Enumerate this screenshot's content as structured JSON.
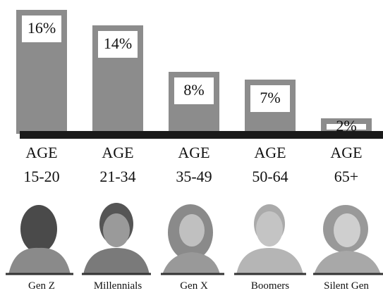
{
  "chart_data": {
    "type": "bar",
    "categories": [
      "AGE 15-20",
      "AGE 21-34",
      "AGE 35-49",
      "AGE 50-64",
      "AGE 65+"
    ],
    "values": [
      16,
      14,
      8,
      7,
      2
    ],
    "value_labels": [
      "16%",
      "14%",
      "8%",
      "7%",
      "2%"
    ],
    "generations": [
      "Gen Z",
      "Millennials",
      "Gen X",
      "Boomers",
      "Silent Gen"
    ],
    "color": "#8c8c8c",
    "ylim": [
      0,
      17
    ]
  }
}
